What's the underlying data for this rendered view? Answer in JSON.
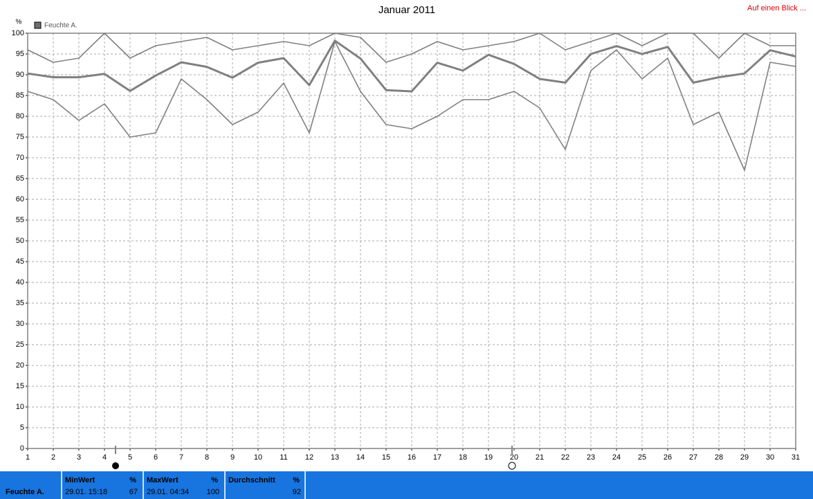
{
  "chart_data": {
    "type": "line",
    "title": "Januar 2011",
    "link": "Auf einen Blick ...",
    "y_label": "%",
    "legend": "Feuchte A.",
    "x": [
      1,
      2,
      3,
      4,
      5,
      6,
      7,
      8,
      9,
      10,
      11,
      12,
      13,
      14,
      15,
      16,
      17,
      18,
      19,
      20,
      21,
      22,
      23,
      24,
      25,
      26,
      27,
      28,
      29,
      30,
      31
    ],
    "xlim": [
      1,
      31
    ],
    "xticks": [
      1,
      2,
      3,
      4,
      5,
      6,
      7,
      8,
      9,
      10,
      11,
      12,
      13,
      14,
      15,
      16,
      17,
      18,
      19,
      20,
      21,
      22,
      23,
      24,
      25,
      26,
      27,
      28,
      29,
      30,
      31
    ],
    "ylim": [
      0,
      100
    ],
    "yticks": [
      0,
      5,
      10,
      15,
      20,
      25,
      30,
      35,
      40,
      45,
      50,
      55,
      60,
      65,
      70,
      75,
      80,
      85,
      90,
      95,
      100
    ],
    "grid": true,
    "series": [
      {
        "color": "#808080",
        "values": [
          96,
          93,
          94,
          100,
          94,
          97,
          98,
          99,
          96,
          97,
          98,
          97,
          100,
          99,
          93,
          95,
          98,
          96,
          97,
          98,
          100,
          96,
          98,
          100,
          97,
          100,
          100,
          94,
          100,
          97,
          97
        ]
      },
      {
        "color": "#808080",
        "values": [
          90.3,
          89.4,
          89.4,
          90.2,
          86.1,
          89.8,
          93,
          91.9,
          89.3,
          92.9,
          94,
          87.5,
          98.2,
          93.9,
          86.3,
          86,
          92.9,
          91,
          94.8,
          92.6,
          89,
          88.1,
          95,
          96.9,
          95,
          96.7,
          88.1,
          89.4,
          90.3,
          95.9,
          94.4
        ]
      },
      {
        "color": "#808080",
        "values": [
          86,
          84,
          79,
          83,
          75,
          76,
          89,
          84,
          78,
          81,
          88,
          76,
          98,
          86,
          78,
          77,
          80,
          84,
          84,
          86,
          82,
          72,
          91,
          96,
          89,
          94,
          78,
          81,
          67,
          93,
          92
        ]
      }
    ]
  },
  "summary": {
    "label": "Feuchte A.",
    "columns": [
      {
        "header": "MinWert",
        "unit": "%",
        "time": "29.01. 15:18",
        "value": 67
      },
      {
        "header": "MaxWert",
        "unit": "%",
        "time": "29.01. 04:34",
        "value": 100
      },
      {
        "header": "Durchschnitt",
        "unit": "%",
        "value": 92
      }
    ]
  }
}
